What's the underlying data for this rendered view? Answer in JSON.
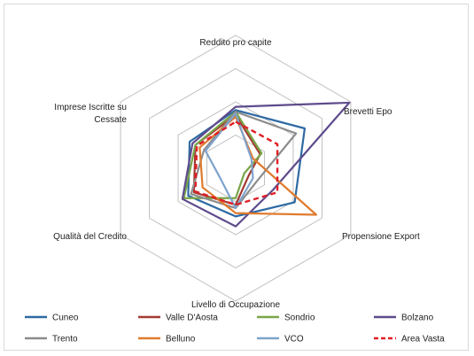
{
  "chart_data": {
    "type": "radar",
    "title": "",
    "axes": [
      "Reddito pro capite",
      "Brevetti Epo",
      "Propensione Export",
      "Livello di Occupazione",
      "Qualità del Credito",
      "Imprese Iscritte su Cessate"
    ],
    "axis_label_lines": [
      [
        "Reddito pro capite"
      ],
      [
        "Brevetti Epo"
      ],
      [
        "Propensione Export"
      ],
      [
        "Livello di Occupazione"
      ],
      [
        "Qualità del Credito"
      ],
      [
        "Imprese Iscritte su",
        "Cessate"
      ]
    ],
    "rings": 4,
    "range": [
      0,
      4
    ],
    "grid": true,
    "legend_position": "bottom",
    "series": [
      {
        "name": "Cuneo",
        "color": "#2e6aa3",
        "dash": false,
        "values": [
          1.75,
          2.4,
          2.05,
          1.45,
          1.65,
          1.6
        ]
      },
      {
        "name": "Valle D'Aosta",
        "color": "#a33a32",
        "dash": false,
        "values": [
          1.6,
          0.85,
          0.45,
          1.1,
          1.45,
          1.4
        ]
      },
      {
        "name": "Sondrio",
        "color": "#78a548",
        "dash": false,
        "values": [
          1.7,
          0.9,
          0.3,
          0.9,
          1.8,
          1.4
        ]
      },
      {
        "name": "Bolzano",
        "color": "#5e4b8c",
        "dash": false,
        "values": [
          1.85,
          3.95,
          1.3,
          1.75,
          1.85,
          1.5
        ]
      },
      {
        "name": "Trento",
        "color": "#8c8c8c",
        "dash": false,
        "values": [
          1.7,
          2.1,
          0.75,
          1.2,
          1.55,
          1.1
        ]
      },
      {
        "name": "Belluno",
        "color": "#e07b2e",
        "dash": false,
        "values": [
          1.55,
          0.6,
          2.8,
          1.35,
          1.15,
          1.25
        ]
      },
      {
        "name": "VCO",
        "color": "#7fa3cc",
        "dash": false,
        "values": [
          1.65,
          0.55,
          0.6,
          1.2,
          0.55,
          1.05
        ]
      },
      {
        "name": "Area Vasta",
        "color": "#e01f26",
        "dash": true,
        "values": [
          1.4,
          1.45,
          1.45,
          1.1,
          1.4,
          1.35
        ]
      }
    ]
  }
}
